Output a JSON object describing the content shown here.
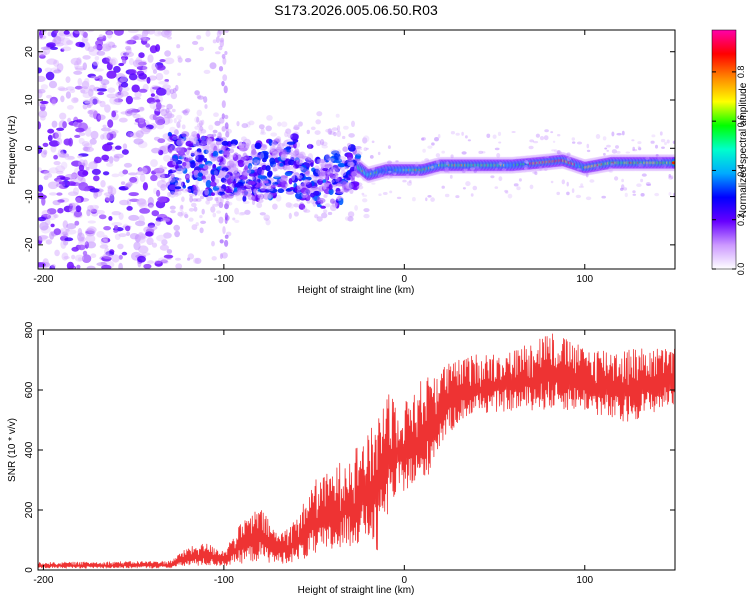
{
  "page": {
    "title": "S173.2026.005.06.50.R03"
  },
  "chart_data": [
    {
      "type": "heatmap",
      "title": "S173.2026.005.06.50.R03",
      "xlabel": "Height of straight line (km)",
      "ylabel": "Frequency (Hz)",
      "xlim": [
        -203,
        150
      ],
      "ylim": [
        -25,
        24.5
      ],
      "xticks": [
        -200,
        -100,
        0,
        100
      ],
      "xtick_labels": [
        "-200",
        "-100",
        "0",
        "100"
      ],
      "yticks": [
        -20,
        -10,
        0,
        10,
        20
      ],
      "ytick_labels": [
        "-20",
        "-10",
        "0",
        "10",
        "20"
      ],
      "colorbar": {
        "label": "Normalized spectral amplitude",
        "range": [
          0.0,
          0.97
        ],
        "ticks": [
          0.0,
          0.2,
          0.4,
          0.6,
          0.8
        ],
        "tick_labels": [
          "0.0",
          "0.2",
          "0.4",
          "0.6",
          "0.8"
        ],
        "colormap": [
          "#ffffff",
          "#cc99ff",
          "#6600ff",
          "#0000ff",
          "#00aaff",
          "#00ffcc",
          "#00ff00",
          "#ffff00",
          "#ff8800",
          "#ff0000",
          "#ff00aa"
        ]
      },
      "ridge": [
        {
          "x": -120,
          "y": -3
        },
        {
          "x": -100,
          "y": -4
        },
        {
          "x": -80,
          "y": -5
        },
        {
          "x": -60,
          "y": -3
        },
        {
          "x": -40,
          "y": -4
        },
        {
          "x": -25,
          "y": -4
        },
        {
          "x": -20,
          "y": -5.5
        },
        {
          "x": -10,
          "y": -4.5
        },
        {
          "x": 0,
          "y": -4.5
        },
        {
          "x": 10,
          "y": -4.5
        },
        {
          "x": 20,
          "y": -3.5
        },
        {
          "x": 40,
          "y": -3.5
        },
        {
          "x": 60,
          "y": -3.5
        },
        {
          "x": 75,
          "y": -3
        },
        {
          "x": 88,
          "y": -2.5
        },
        {
          "x": 100,
          "y": -4
        },
        {
          "x": 115,
          "y": -3
        },
        {
          "x": 130,
          "y": -3
        },
        {
          "x": 150,
          "y": -3
        }
      ]
    },
    {
      "type": "line",
      "xlabel": "Height of straight line (km)",
      "ylabel": "SNR (10 * v/v)",
      "xlim": [
        -203,
        150
      ],
      "ylim": [
        0,
        800
      ],
      "xticks": [
        -200,
        -100,
        0,
        100
      ],
      "xtick_labels": [
        "-200",
        "-100",
        "0",
        "100"
      ],
      "yticks": [
        0,
        200,
        400,
        600,
        800
      ],
      "ytick_labels": [
        "0",
        "200",
        "400",
        "600",
        "800"
      ],
      "series": [
        {
          "name": "SNR",
          "color": "#ee3333",
          "envelope": [
            {
              "x": -203,
              "low": 5,
              "high": 25
            },
            {
              "x": -130,
              "low": 5,
              "high": 30
            },
            {
              "x": -120,
              "low": 10,
              "high": 75
            },
            {
              "x": -110,
              "low": 10,
              "high": 90
            },
            {
              "x": -100,
              "low": 10,
              "high": 65
            },
            {
              "x": -90,
              "low": 15,
              "high": 160
            },
            {
              "x": -80,
              "low": 20,
              "high": 210
            },
            {
              "x": -70,
              "low": 15,
              "high": 120
            },
            {
              "x": -60,
              "low": 20,
              "high": 170
            },
            {
              "x": -50,
              "low": 30,
              "high": 300
            },
            {
              "x": -40,
              "low": 40,
              "high": 330
            },
            {
              "x": -30,
              "low": 60,
              "high": 400
            },
            {
              "x": -20,
              "low": 80,
              "high": 450
            },
            {
              "x": -15,
              "low": 20,
              "high": 520
            },
            {
              "x": -10,
              "low": 150,
              "high": 620
            },
            {
              "x": 0,
              "low": 250,
              "high": 560
            },
            {
              "x": 10,
              "low": 250,
              "high": 640
            },
            {
              "x": 20,
              "low": 400,
              "high": 680
            },
            {
              "x": 30,
              "low": 480,
              "high": 700
            },
            {
              "x": 40,
              "low": 510,
              "high": 720
            },
            {
              "x": 60,
              "low": 520,
              "high": 730
            },
            {
              "x": 80,
              "low": 520,
              "high": 800
            },
            {
              "x": 100,
              "low": 520,
              "high": 740
            },
            {
              "x": 120,
              "low": 470,
              "high": 740
            },
            {
              "x": 150,
              "low": 540,
              "high": 740
            }
          ]
        }
      ]
    }
  ]
}
